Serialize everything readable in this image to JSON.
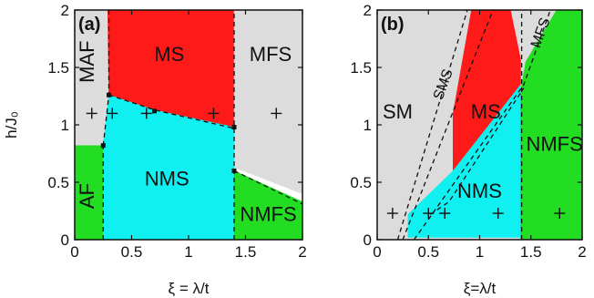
{
  "colors": {
    "gray": "#dcdcdc",
    "red": "#ff1a1a",
    "cyan": "#11f0f0",
    "green": "#22dd22",
    "ink": "#111111"
  },
  "chart_data": [
    {
      "type": "heatmap",
      "panel_label": "(a)",
      "xlabel": "ξ = λ/t",
      "ylabel": "h/J₀",
      "xlim": [
        0,
        2
      ],
      "ylim": [
        0,
        2
      ],
      "x_ticks": [
        "0",
        "0.5",
        "1",
        "1.5",
        "2"
      ],
      "y_ticks": [
        "0",
        "0.5",
        "1",
        "1.5",
        "2"
      ],
      "regions": [
        {
          "label": "MAF",
          "color": "gray",
          "polygon": [
            [
              0,
              0.82
            ],
            [
              0.25,
              0.82
            ],
            [
              0.3,
              1.26
            ],
            [
              0.29,
              2
            ],
            [
              0,
              2
            ]
          ]
        },
        {
          "label": "MS",
          "color": "red",
          "polygon": [
            [
              0.3,
              1.26
            ],
            [
              0.29,
              2
            ],
            [
              1.4,
              2
            ],
            [
              1.4,
              0.98
            ],
            [
              0.7,
              1.13
            ]
          ]
        },
        {
          "label": "MFS",
          "color": "gray",
          "polygon": [
            [
              1.4,
              0.63
            ],
            [
              1.4,
              2
            ],
            [
              2,
              2
            ],
            [
              2,
              0.4
            ]
          ]
        },
        {
          "label": "AF",
          "color": "green",
          "polygon": [
            [
              0,
              0
            ],
            [
              0.25,
              0
            ],
            [
              0.25,
              0.82
            ],
            [
              0,
              0.82
            ]
          ]
        },
        {
          "label": "NMS",
          "color": "cyan",
          "polygon": [
            [
              0.25,
              0
            ],
            [
              1.4,
              0
            ],
            [
              1.4,
              0.98
            ],
            [
              0.7,
              1.13
            ],
            [
              0.3,
              1.26
            ],
            [
              0.25,
              0.82
            ]
          ]
        },
        {
          "label": "NMFS",
          "color": "green",
          "polygon": [
            [
              1.4,
              0
            ],
            [
              2,
              0
            ],
            [
              2,
              0.33
            ],
            [
              1.4,
              0.6
            ]
          ]
        }
      ],
      "label_positions": [
        {
          "text": "MAF",
          "x": 0.12,
          "y": 1.55,
          "rotate": true
        },
        {
          "text": "MS",
          "x": 0.83,
          "y": 1.6
        },
        {
          "text": "MFS",
          "x": 1.72,
          "y": 1.6
        },
        {
          "text": "NMS",
          "x": 0.81,
          "y": 0.52
        },
        {
          "text": "AF",
          "x": 0.12,
          "y": 0.38,
          "rotate": true
        },
        {
          "text": "NMFS",
          "x": 1.7,
          "y": 0.21
        }
      ],
      "dashed_lines": [
        [
          [
            0.25,
            0.82
          ],
          [
            0.3,
            1.26
          ],
          [
            0.3,
            2
          ]
        ],
        [
          [
            0.25,
            0
          ],
          [
            0.25,
            0.82
          ]
        ],
        [
          [
            0.3,
            1.26
          ],
          [
            0.7,
            1.13
          ],
          [
            1.4,
            0.97
          ]
        ],
        [
          [
            1.4,
            0
          ],
          [
            1.4,
            2
          ]
        ],
        [
          [
            1.4,
            0.6
          ],
          [
            2,
            0.31
          ]
        ]
      ],
      "markers": [
        [
          0.15,
          1.1
        ],
        [
          0.33,
          1.1
        ],
        [
          0.63,
          1.1
        ],
        [
          1.22,
          1.1
        ],
        [
          1.77,
          1.1
        ]
      ],
      "points": [
        [
          0.25,
          0.82
        ],
        [
          0.3,
          1.26
        ],
        [
          0.7,
          1.12
        ],
        [
          1.4,
          0.98
        ],
        [
          1.4,
          0.6
        ]
      ]
    },
    {
      "type": "heatmap",
      "panel_label": "(b)",
      "xlabel": "ξ=λ/t",
      "ylabel": "",
      "xlim": [
        0,
        2
      ],
      "ylim": [
        0,
        2
      ],
      "x_ticks": [
        "0",
        "0.5",
        "1",
        "1.5",
        "2"
      ],
      "y_ticks": [
        "0",
        "0.5",
        "1",
        "1.5",
        "2"
      ],
      "regions": [
        {
          "label": "SM",
          "color": "gray",
          "polygon": [
            [
              0,
              0
            ],
            [
              2,
              0
            ],
            [
              2,
              2
            ],
            [
              0,
              2
            ]
          ]
        },
        {
          "label": "MS",
          "color": "red",
          "polygon": [
            [
              0.74,
              0.6
            ],
            [
              0.74,
              1.1
            ],
            [
              0.92,
              2
            ],
            [
              1.3,
              2
            ],
            [
              1.4,
              1.57
            ],
            [
              1.4,
              1.35
            ]
          ]
        },
        {
          "label": "NMS",
          "color": "cyan",
          "polygon": [
            [
              0.3,
              0.02
            ],
            [
              0.55,
              0.02
            ],
            [
              1.4,
              0.02
            ],
            [
              1.4,
              1.35
            ],
            [
              0.74,
              0.6
            ],
            [
              0.3,
              0.22
            ]
          ]
        },
        {
          "label": "NMFS",
          "color": "green",
          "polygon": [
            [
              1.4,
              0
            ],
            [
              2,
              0
            ],
            [
              2,
              2
            ],
            [
              1.75,
              2
            ],
            [
              1.45,
              1.55
            ],
            [
              1.4,
              1.3
            ]
          ]
        }
      ],
      "label_positions": [
        {
          "text": "SM",
          "x": 0.2,
          "y": 1.1
        },
        {
          "text": "SMS",
          "x": 0.65,
          "y": 1.35,
          "rotate_slanted": true
        },
        {
          "text": "MS",
          "x": 1.06,
          "y": 1.1
        },
        {
          "text": "MFS",
          "x": 1.6,
          "y": 1.8,
          "rotate_slanted": true
        },
        {
          "text": "NMS",
          "x": 1.0,
          "y": 0.41
        },
        {
          "text": "NMFS",
          "x": 1.73,
          "y": 0.82
        }
      ],
      "dashed_lines": [
        [
          [
            0.2,
            0
          ],
          [
            0.88,
            2
          ]
        ],
        [
          [
            0.25,
            0
          ],
          [
            1.13,
            2
          ]
        ],
        [
          [
            0.36,
            0
          ],
          [
            1.43,
            1.35
          ],
          [
            1.69,
            2
          ]
        ],
        [
          [
            0.52,
            0.22
          ],
          [
            0.7,
            0.33
          ],
          [
            1.43,
            1.32
          ]
        ],
        [
          [
            1.41,
            0
          ],
          [
            1.41,
            2
          ]
        ]
      ],
      "markers": [
        [
          0.15,
          0.23
        ],
        [
          0.5,
          0.23
        ],
        [
          0.66,
          0.23
        ],
        [
          1.18,
          0.23
        ],
        [
          1.78,
          0.23
        ]
      ]
    }
  ]
}
